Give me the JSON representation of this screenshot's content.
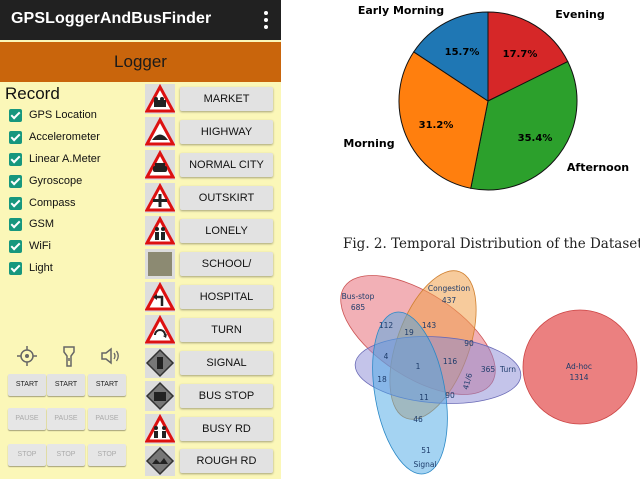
{
  "phone": {
    "app_title": "GPSLoggerAndBusFinder",
    "banner": "Logger",
    "record_title": "Record",
    "checkboxes": [
      "GPS Location",
      "Accelerometer",
      "Linear A.Meter",
      "Gyroscope",
      "Compass",
      "GSM",
      "WiFi",
      "Light"
    ],
    "controls": [
      {
        "icon": "gps-crosshair-icon",
        "start": "START",
        "pause": "PAUSE",
        "stop": "STOP"
      },
      {
        "icon": "flashlight-icon",
        "start": "START",
        "pause": "PAUSE",
        "stop": "STOP"
      },
      {
        "icon": "speaker-icon",
        "start": "START",
        "pause": "PAUSE",
        "stop": "STOP"
      }
    ],
    "road_buttons": [
      "MARKET",
      "HIGHWAY",
      "NORMAL CITY",
      "OUTSKIRT",
      "LONELY",
      "SCHOOL/",
      "HOSPITAL",
      "TURN",
      "SIGNAL",
      "BUS STOP",
      "BUSY RD",
      "ROUGH RD"
    ],
    "road_icons": [
      "market-sign-icon",
      "highway-hump-sign-icon",
      "city-car-sign-icon",
      "crossroad-sign-icon",
      "pedestrian-sign-icon",
      "school-blank-icon",
      "turn-left-sign-icon",
      "turn-around-sign-icon",
      "signal-diamond-icon",
      "bus-stop-diamond-icon",
      "busy-road-sign-icon",
      "rough-road-diamond-icon"
    ],
    "colors": {
      "appbar": "#212121",
      "banner": "#c9650c",
      "background": "#fbf7b8",
      "checkbox": "#17977e"
    }
  },
  "pie": {
    "caption": "Fig. 2.  Temporal Distribution of the Dataset",
    "chart_data": {
      "type": "pie",
      "slices": [
        {
          "label": "Early Morning",
          "value": 15.7,
          "pct": "15.7%",
          "color": "#1f77b4"
        },
        {
          "label": "Evening",
          "value": 17.7,
          "pct": "17.7%",
          "color": "#d62728"
        },
        {
          "label": "Afternoon",
          "value": 35.4,
          "pct": "35.4%",
          "color": "#2ca02c"
        },
        {
          "label": "Morning",
          "value": 31.2,
          "pct": "31.2%",
          "color": "#ff7f0e"
        }
      ]
    }
  },
  "venn": {
    "sets": [
      {
        "name": "Bus-stop",
        "count": "685",
        "color": "#e8707a"
      },
      {
        "name": "Congestion",
        "count": "437",
        "color": "#f0a04a"
      },
      {
        "name": "Turn",
        "count": "365",
        "color": "#8a8ad6"
      },
      {
        "name": "Signal",
        "count": "51",
        "color": "#4aa8e6"
      },
      {
        "name": "Ad-hoc",
        "count": "1314",
        "color": "#e86a6a"
      }
    ],
    "regions": [
      "112",
      "19",
      "143",
      "90",
      "4",
      "1",
      "116",
      "18",
      "41/6",
      "11",
      "90",
      "46"
    ]
  }
}
